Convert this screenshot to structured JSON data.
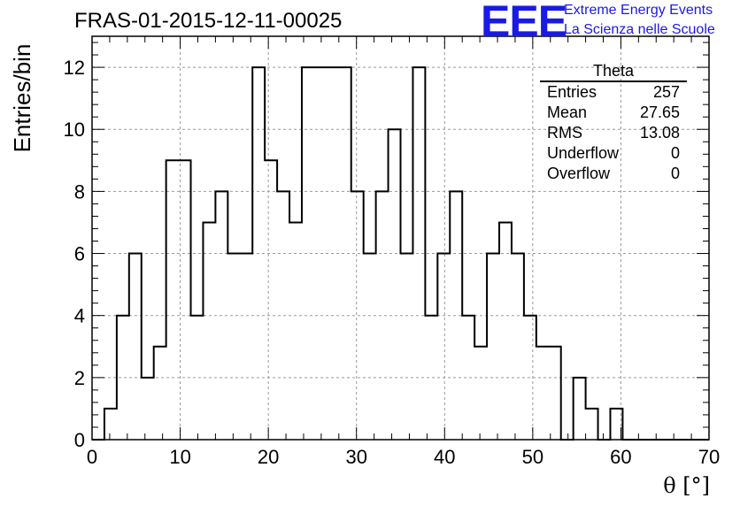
{
  "title": "FRAS-01-2015-12-11-00025",
  "logo": {
    "text": "EEE",
    "line1": "Extreme Energy Events",
    "line2": "La Scienza nelle Scuole"
  },
  "colors": {
    "logo": "#1a1ae6",
    "hist": "#000000",
    "grid": "#999999"
  },
  "stats": {
    "name": "Theta",
    "rows": [
      {
        "label": "Entries",
        "value": "257"
      },
      {
        "label": "Mean",
        "value": "27.65"
      },
      {
        "label": "RMS",
        "value": "13.08"
      },
      {
        "label": "Underflow",
        "value": "0"
      },
      {
        "label": "Overflow",
        "value": "0"
      }
    ]
  },
  "chart_data": {
    "type": "histogram",
    "xlabel": "θ [°]",
    "ylabel": "Entries/bin",
    "xlim": [
      0,
      70
    ],
    "ylim": [
      0,
      13
    ],
    "bin_width": 1.4,
    "bin_start": 0,
    "values": [
      0,
      1,
      4,
      6,
      2,
      3,
      9,
      9,
      4,
      7,
      8,
      6,
      6,
      12,
      9,
      8,
      7,
      12,
      12,
      12,
      12,
      8,
      6,
      8,
      10,
      6,
      12,
      4,
      6,
      8,
      4,
      3,
      6,
      7,
      6,
      4,
      3,
      3,
      0,
      2,
      1,
      0,
      1,
      0,
      0,
      0,
      0,
      0,
      0,
      0
    ],
    "xticks": [
      0,
      10,
      20,
      30,
      40,
      50,
      60,
      70
    ],
    "yticks": [
      0,
      2,
      4,
      6,
      8,
      10,
      12
    ],
    "grid": true
  }
}
